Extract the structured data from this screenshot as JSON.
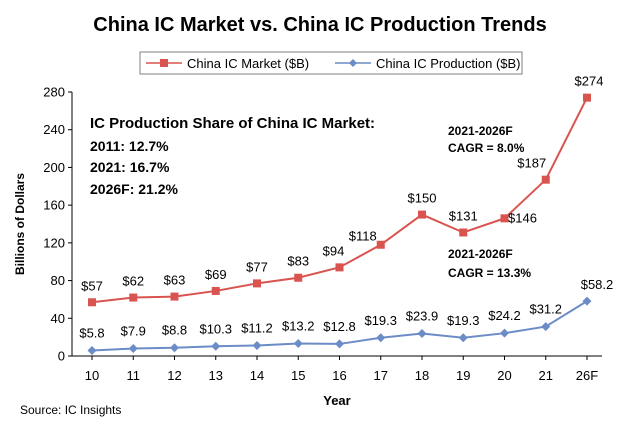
{
  "chart_data": {
    "type": "line",
    "title": "China IC Market vs. China IC Production Trends",
    "xlabel": "Year",
    "ylabel": "Billions of Dollars",
    "ylim": [
      0,
      280
    ],
    "yticks": [
      0,
      40,
      80,
      120,
      160,
      200,
      240,
      280
    ],
    "categories": [
      "10",
      "11",
      "12",
      "13",
      "14",
      "15",
      "16",
      "17",
      "18",
      "19",
      "20",
      "21",
      "26F"
    ],
    "series": [
      {
        "name": "China IC Market ($B)",
        "color": "#d9534f",
        "marker": "square",
        "values": [
          57,
          62,
          63,
          69,
          77,
          83,
          94,
          118,
          150,
          131,
          146,
          187,
          274
        ],
        "labels": [
          "$57",
          "$62",
          "$63",
          "$69",
          "$77",
          "$83",
          "$94",
          "$118",
          "$150",
          "$131",
          "$146",
          "$187",
          "$274"
        ]
      },
      {
        "name": "China IC Production ($B)",
        "color": "#6b8cc7",
        "marker": "diamond",
        "values": [
          5.8,
          7.9,
          8.8,
          10.3,
          11.2,
          13.2,
          12.8,
          19.3,
          23.9,
          19.3,
          24.2,
          31.2,
          58.2
        ],
        "labels": [
          "$5.8",
          "$7.9",
          "$8.8",
          "$10.3",
          "$11.2",
          "$13.2",
          "$12.8",
          "$19.3",
          "$23.9",
          "$19.3",
          "$24.2",
          "$31.2",
          "$58.2"
        ]
      }
    ],
    "legend": {
      "position": "top-center"
    },
    "annotations": {
      "share": {
        "heading": "IC Production Share of China IC Market:",
        "lines": [
          "2011: 12.7%",
          "2021: 16.7%",
          "2026F: 21.2%"
        ]
      },
      "market_cagr": [
        "2021-2026F",
        "CAGR = 8.0%"
      ],
      "production_cagr": [
        "2021-2026F",
        "CAGR = 13.3%"
      ]
    }
  },
  "footer": {
    "source": "Source: IC Insights"
  }
}
